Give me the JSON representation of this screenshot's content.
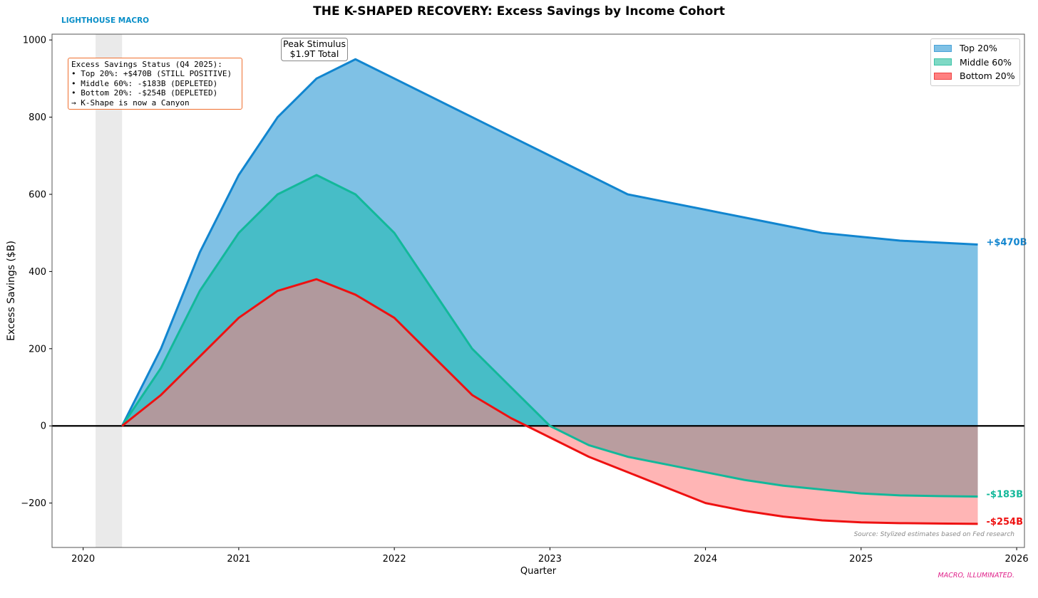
{
  "brand": "LIGHTHOUSE MACRO",
  "tagline": "MACRO, ILLUMINATED.",
  "chart_data": {
    "type": "area",
    "title": "THE K-SHAPED RECOVERY: Excess Savings by Income Cohort",
    "xlabel": "Quarter",
    "ylabel": "Excess Savings ($B)",
    "xlim": [
      2019.8,
      2026.05
    ],
    "ylim": [
      -315,
      1015
    ],
    "x_ticks": [
      2020,
      2021,
      2022,
      2023,
      2024,
      2025,
      2026
    ],
    "y_ticks": [
      -200,
      0,
      200,
      400,
      600,
      800,
      1000
    ],
    "shaded_region": [
      2020.08,
      2020.25
    ],
    "x": [
      2020.25,
      2020.5,
      2020.75,
      2021.0,
      2021.25,
      2021.5,
      2021.75,
      2022.0,
      2022.25,
      2022.5,
      2022.75,
      2023.0,
      2023.25,
      2023.5,
      2023.75,
      2024.0,
      2024.25,
      2024.5,
      2024.75,
      2025.0,
      2025.25,
      2025.5,
      2025.75
    ],
    "series": [
      {
        "name": "Top 20%",
        "color": "#1185cf",
        "fill": "#7fc1e5",
        "end_label": "+$470B",
        "values": [
          0,
          200,
          450,
          650,
          800,
          900,
          950,
          900,
          850,
          800,
          750,
          700,
          650,
          600,
          580,
          560,
          540,
          520,
          500,
          490,
          480,
          475,
          470
        ]
      },
      {
        "name": "Middle 60%",
        "color": "#13b89a",
        "fill": "#3dbcc2",
        "end_label": "-$183B",
        "values": [
          0,
          150,
          350,
          500,
          600,
          650,
          600,
          500,
          350,
          200,
          100,
          0,
          -50,
          -80,
          -100,
          -120,
          -140,
          -155,
          -165,
          -175,
          -180,
          -182,
          -183
        ]
      },
      {
        "name": "Bottom 20%",
        "color": "#ee1111",
        "fill": "#ff8080",
        "end_label": "-$254B",
        "values": [
          0,
          80,
          180,
          280,
          350,
          380,
          340,
          280,
          180,
          80,
          20,
          -30,
          -80,
          -120,
          -160,
          -200,
          -220,
          -235,
          -245,
          -250,
          -252,
          -253,
          -254
        ]
      }
    ],
    "annotations": {
      "status_lines": [
        "Excess Savings Status (Q4 2025):",
        "• Top 20%: +$470B (STILL POSITIVE)",
        "• Middle 60%: -$183B (DEPLETED)",
        "• Bottom 20%: -$254B (DEPLETED)",
        "→ K-Shape is now a Canyon"
      ],
      "peak_lines": [
        "Peak Stimulus",
        "$1.9T Total"
      ],
      "source": "Source: Stylized estimates based on Fed research"
    }
  }
}
